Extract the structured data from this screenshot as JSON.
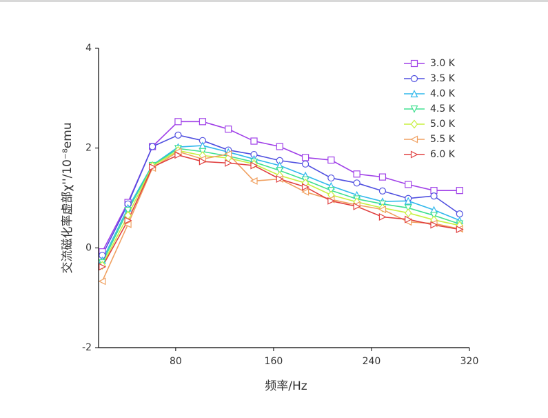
{
  "chart_data": {
    "type": "line",
    "xlabel": "频率/Hz",
    "ylabel": "交流磁化率虚部χ''/10⁻⁸emu",
    "x": [
      20,
      41,
      61,
      82,
      102,
      123,
      144,
      165,
      186,
      207,
      228,
      249,
      270,
      291,
      312
    ],
    "xlim": [
      17,
      320
    ],
    "xticks": [
      80,
      160,
      240,
      320
    ],
    "ylim": [
      -2,
      4
    ],
    "yticks": [
      -2,
      0,
      2,
      4
    ],
    "legend": "upper right",
    "series": [
      {
        "name": "3.0 K",
        "color": "#a040e8",
        "marker": "square",
        "values": [
          -0.08,
          0.91,
          2.03,
          2.53,
          2.53,
          2.38,
          2.14,
          2.03,
          1.81,
          1.76,
          1.48,
          1.42,
          1.27,
          1.15,
          1.15
        ]
      },
      {
        "name": "3.5 K",
        "color": "#5050e0",
        "marker": "circle",
        "values": [
          -0.15,
          0.88,
          2.03,
          2.26,
          2.15,
          1.96,
          1.87,
          1.75,
          1.68,
          1.4,
          1.3,
          1.14,
          0.99,
          1.04,
          0.68
        ]
      },
      {
        "name": "4.0 K",
        "color": "#30b8ec",
        "marker": "triangle-up",
        "values": [
          -0.25,
          0.8,
          1.66,
          2.02,
          2.05,
          1.92,
          1.78,
          1.65,
          1.45,
          1.24,
          1.06,
          0.93,
          0.94,
          0.76,
          0.55
        ]
      },
      {
        "name": "4.5 K",
        "color": "#40e090",
        "marker": "triangle-down",
        "values": [
          -0.3,
          0.75,
          1.65,
          1.99,
          1.93,
          1.84,
          1.72,
          1.55,
          1.36,
          1.15,
          0.98,
          0.88,
          0.8,
          0.65,
          0.48
        ]
      },
      {
        "name": "5.0 K",
        "color": "#c8f040",
        "marker": "diamond",
        "values": [
          -0.35,
          0.65,
          1.64,
          1.95,
          1.85,
          1.8,
          1.68,
          1.45,
          1.3,
          1.06,
          0.92,
          0.8,
          0.7,
          0.56,
          0.45
        ]
      },
      {
        "name": "5.5 K",
        "color": "#f0a060",
        "marker": "triangle-left",
        "values": [
          -0.67,
          0.47,
          1.6,
          1.93,
          1.78,
          1.88,
          1.34,
          1.38,
          1.12,
          0.97,
          0.86,
          0.77,
          0.52,
          0.49,
          0.38
        ]
      },
      {
        "name": "6.0 K",
        "color": "#e04040",
        "marker": "triangle-right",
        "values": [
          -0.38,
          0.55,
          1.62,
          1.86,
          1.73,
          1.7,
          1.65,
          1.38,
          1.22,
          0.94,
          0.83,
          0.62,
          0.57,
          0.46,
          0.37
        ]
      }
    ]
  }
}
